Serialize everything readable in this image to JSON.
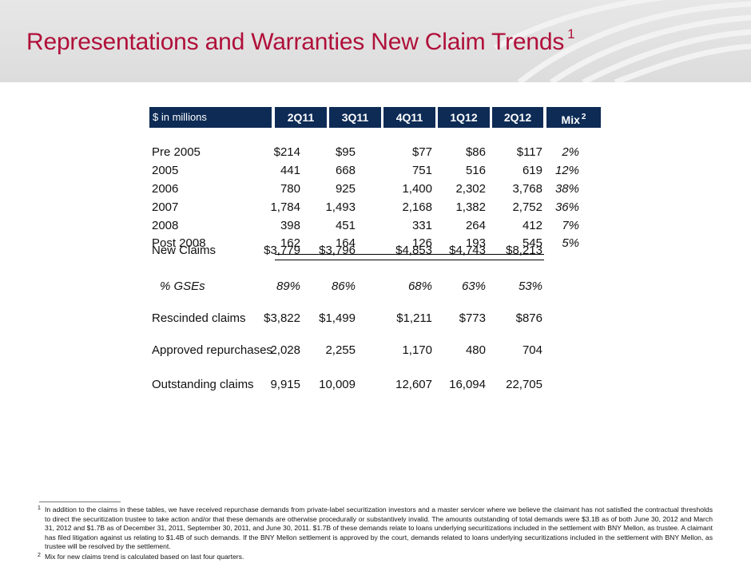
{
  "title": {
    "text": "Representations and Warranties New Claim Trends",
    "footnote_mark": "1"
  },
  "table": {
    "header": {
      "unit_label": "$ in millions",
      "columns": [
        "2Q11",
        "3Q11",
        "4Q11",
        "1Q12",
        "2Q12"
      ],
      "mix_label": "Mix",
      "mix_mark": "2"
    },
    "rows": [
      {
        "label": "Pre 2005",
        "values": [
          "$214",
          "$95",
          "$77",
          "$86",
          "$117"
        ],
        "mix": "2%"
      },
      {
        "label": "2005",
        "values": [
          "441",
          "668",
          "751",
          "516",
          "619"
        ],
        "mix": "12%"
      },
      {
        "label": "2006",
        "values": [
          "780",
          "925",
          "1,400",
          "2,302",
          "3,768"
        ],
        "mix": "38%"
      },
      {
        "label": "2007",
        "values": [
          "1,784",
          "1,493",
          "2,168",
          "1,382",
          "2,752"
        ],
        "mix": "36%"
      },
      {
        "label": "2008",
        "values": [
          "398",
          "451",
          "331",
          "264",
          "412"
        ],
        "mix": "7%"
      },
      {
        "label": "Post 2008",
        "values": [
          "162",
          "164",
          "126",
          "193",
          "545"
        ],
        "mix": "5%"
      },
      {
        "label": "New Claims",
        "values": [
          "$3,779",
          "$3,796",
          "$4,853",
          "$4,743",
          "$8,213"
        ],
        "mix": ""
      }
    ],
    "gse_row": {
      "label": "% GSEs",
      "values": [
        "89%",
        "86%",
        "68%",
        "63%",
        "53%"
      ]
    },
    "rescinded": {
      "label": "Rescinded claims",
      "values": [
        "$3,822",
        "$1,499",
        "$1,211",
        "$773",
        "$876"
      ]
    },
    "approved": {
      "label": "Approved repurchases",
      "values": [
        "2,028",
        "2,255",
        "1,170",
        "480",
        "704"
      ]
    },
    "outstanding": {
      "label": "Outstanding claims",
      "values": [
        "9,915",
        "10,009",
        "12,607",
        "16,094",
        "22,705"
      ]
    }
  },
  "footnotes": [
    {
      "mark": "1",
      "text": "In addition to the claims in these tables, we have received repurchase demands from private-label securitization investors and a master servicer where we believe the claimant has not satisfied the contractual thresholds to direct the securitization trustee to take action and/or that these demands are otherwise procedurally or substantively invalid. The amounts outstanding of total demands were $3.1B as of both June 30, 2012 and March 31, 2012 and $1.7B as of December 31, 2011, September 30, 2011, and June 30, 2011. $1.7B of these demands relate to loans underlying securitizations included in the settlement with BNY Mellon, as trustee. A claimant has filed litigation against us relating to $1.4B of such demands. If the BNY Mellon settlement is approved by the court, demands related to loans underlying securitizations included in the settlement with BNY Mellon, as trustee will be resolved by the settlement."
    },
    {
      "mark": "2",
      "text": "Mix for new claims trend is calculated based on last four quarters."
    }
  ],
  "colors": {
    "title": "#b0103a",
    "header_bg": "#0d2b55",
    "band": "#e0e0e0"
  }
}
